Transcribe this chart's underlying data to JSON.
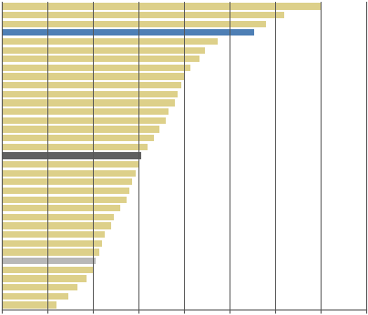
{
  "values": [
    10.5,
    9.3,
    8.7,
    8.3,
    7.1,
    6.7,
    6.5,
    6.2,
    6.0,
    5.9,
    5.8,
    5.7,
    5.5,
    5.4,
    5.2,
    5.0,
    4.8,
    4.6,
    4.5,
    4.4,
    4.3,
    4.2,
    4.1,
    3.9,
    3.7,
    3.6,
    3.4,
    3.3,
    3.2,
    3.1,
    3.0,
    2.8,
    2.5,
    2.2,
    1.8
  ],
  "bar_colors": [
    "#ddd08a",
    "#ddd08a",
    "#ddd08a",
    "#4e7fb5",
    "#ddd08a",
    "#ddd08a",
    "#ddd08a",
    "#ddd08a",
    "#ddd08a",
    "#ddd08a",
    "#ddd08a",
    "#ddd08a",
    "#ddd08a",
    "#ddd08a",
    "#ddd08a",
    "#ddd08a",
    "#ddd08a",
    "#606060",
    "#ddd08a",
    "#ddd08a",
    "#ddd08a",
    "#ddd08a",
    "#ddd08a",
    "#ddd08a",
    "#ddd08a",
    "#ddd08a",
    "#ddd08a",
    "#ddd08a",
    "#ddd08a",
    "#b8b8b8",
    "#ddd08a",
    "#ddd08a",
    "#ddd08a",
    "#ddd08a",
    "#ddd08a"
  ],
  "bar_height": 0.75,
  "xlim_max": 12,
  "xtick_count": 9,
  "background_color": "#ffffff",
  "grid_color": "#555555",
  "grid_linewidth": 0.7,
  "spine_color": "#555555",
  "spine_linewidth": 0.8
}
